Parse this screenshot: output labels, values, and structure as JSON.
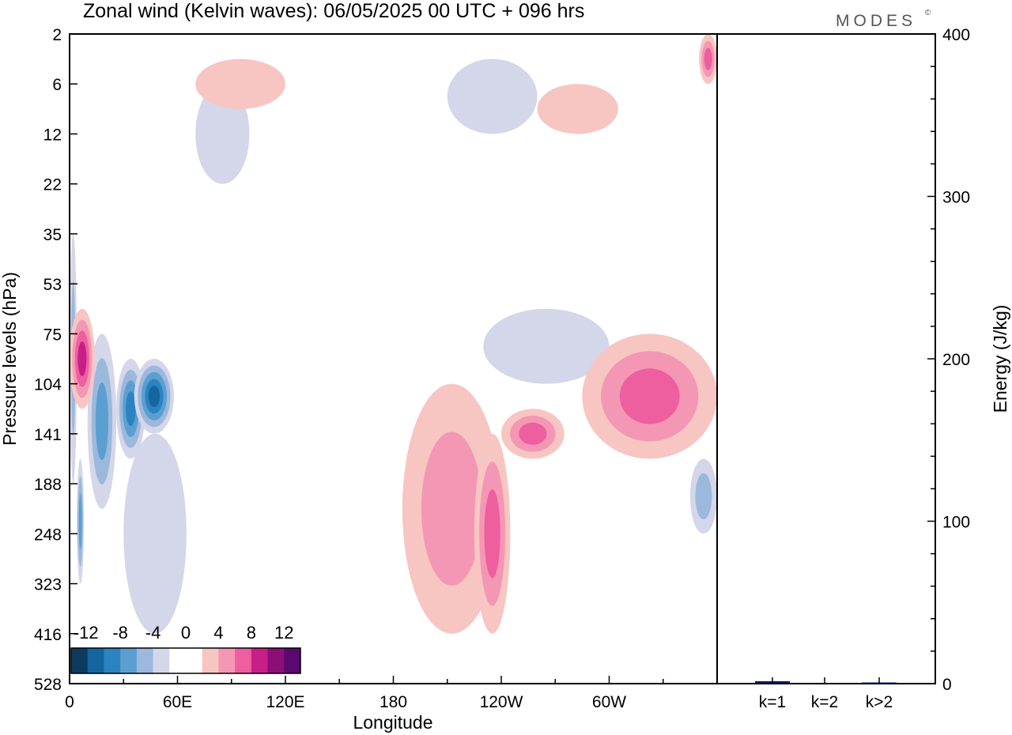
{
  "title": "Zonal wind (Kelvin waves):  06/05/2025  00 UTC  + 096 hrs",
  "brand": "MODES",
  "brand_mark": "©",
  "colors": {
    "neg": [
      "#0d3b5e",
      "#1565a0",
      "#2b84c0",
      "#5b9fd0",
      "#9cb8dc",
      "#d4d6e9"
    ],
    "pos": [
      "#f7c6c2",
      "#f497b4",
      "#ee5f9f",
      "#c81e87",
      "#8b0f77",
      "#5a0a6e"
    ],
    "bar": "#12165a"
  },
  "chart_data": [
    {
      "type": "heatmap",
      "title": "Zonal wind (Kelvin waves):  06/05/2025  00 UTC  + 096 hrs",
      "xlabel": "Longitude",
      "ylabel": "Pressure levels (hPa)",
      "x_ticks": [
        "0",
        "60E",
        "120E",
        "180",
        "120W",
        "60W"
      ],
      "y_ticks": [
        "2",
        "6",
        "12",
        "22",
        "35",
        "53",
        "75",
        "104",
        "141",
        "188",
        "248",
        "323",
        "416",
        "528"
      ],
      "colorbar_ticks": [
        "-12",
        "-8",
        "-4",
        "0",
        "4",
        "8",
        "12"
      ],
      "xlim": [
        0,
        360
      ],
      "ylim": [
        528,
        2
      ],
      "levels": [
        -12,
        -10,
        -8,
        -6,
        -4,
        -2,
        2,
        4,
        6,
        8,
        10,
        12
      ],
      "features": [
        {
          "sign": "neg",
          "lon": [
            0,
            4
          ],
          "lev": [
            4,
            9
          ],
          "strength": 2
        },
        {
          "sign": "neg",
          "lon": [
            4,
            8
          ],
          "lev": [
            8.5,
            11
          ],
          "strength": 3
        },
        {
          "sign": "neg",
          "lon": [
            10,
            26
          ],
          "lev": [
            6,
            9.5
          ],
          "strength": 3
        },
        {
          "sign": "neg",
          "lon": [
            26,
            42
          ],
          "lev": [
            6.5,
            8.5
          ],
          "strength": 4
        },
        {
          "sign": "neg",
          "lon": [
            36,
            58
          ],
          "lev": [
            6.5,
            8
          ],
          "strength": 5
        },
        {
          "sign": "neg",
          "lon": [
            30,
            65
          ],
          "lev": [
            8,
            12
          ],
          "strength": 1
        },
        {
          "sign": "neg",
          "lon": [
            70,
            100
          ],
          "lev": [
            1,
            3
          ],
          "strength": 1
        },
        {
          "sign": "neg",
          "lon": [
            210,
            260
          ],
          "lev": [
            0.5,
            2
          ],
          "strength": 1
        },
        {
          "sign": "neg",
          "lon": [
            230,
            300
          ],
          "lev": [
            5.5,
            7
          ],
          "strength": 1
        },
        {
          "sign": "neg",
          "lon": [
            345,
            360
          ],
          "lev": [
            8.5,
            10
          ],
          "strength": 2
        },
        {
          "sign": "pos",
          "lon": [
            0,
            14
          ],
          "lev": [
            5.5,
            7.5
          ],
          "strength": 4
        },
        {
          "sign": "pos",
          "lon": [
            185,
            240
          ],
          "lev": [
            7,
            12
          ],
          "strength": 2
        },
        {
          "sign": "pos",
          "lon": [
            225,
            245
          ],
          "lev": [
            8,
            12
          ],
          "strength": 3
        },
        {
          "sign": "pos",
          "lon": [
            240,
            275
          ],
          "lev": [
            7.5,
            8.5
          ],
          "strength": 3
        },
        {
          "sign": "pos",
          "lon": [
            285,
            360
          ],
          "lev": [
            6,
            8.5
          ],
          "strength": 3
        },
        {
          "sign": "pos",
          "lon": [
            350,
            360
          ],
          "lev": [
            0,
            1
          ],
          "strength": 3
        },
        {
          "sign": "pos",
          "lon": [
            70,
            120
          ],
          "lev": [
            0.5,
            1.5
          ],
          "strength": 1
        },
        {
          "sign": "pos",
          "lon": [
            260,
            305
          ],
          "lev": [
            1,
            2
          ],
          "strength": 1
        }
      ]
    },
    {
      "type": "bar",
      "xlabel": "",
      "ylabel": "Energy (J/kg)",
      "categories": [
        "k=1",
        "k=2",
        "k>2"
      ],
      "values": [
        1.5,
        0,
        0.5
      ],
      "ylim": [
        0,
        400
      ],
      "y_ticks": [
        "0",
        "100",
        "200",
        "300",
        "400"
      ]
    }
  ]
}
